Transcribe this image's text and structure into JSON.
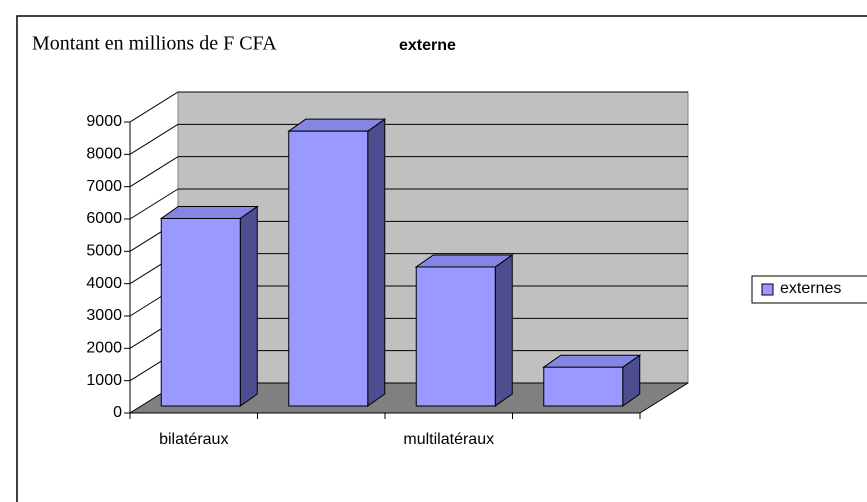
{
  "chart_data": {
    "type": "bar3d",
    "title": "Montant en millions de F CFA",
    "subtitle": "externe",
    "categories": [
      "bilatéraux",
      null,
      "multilatéraux",
      null
    ],
    "series": [
      {
        "name": "externes",
        "color": "#9999ff",
        "values": [
          5800,
          8500,
          4300,
          1200
        ]
      }
    ],
    "ylim": [
      0,
      9000
    ],
    "yticks": [
      0,
      1000,
      2000,
      3000,
      4000,
      5000,
      6000,
      7000,
      8000,
      9000
    ],
    "grid": true,
    "legend": "right"
  }
}
